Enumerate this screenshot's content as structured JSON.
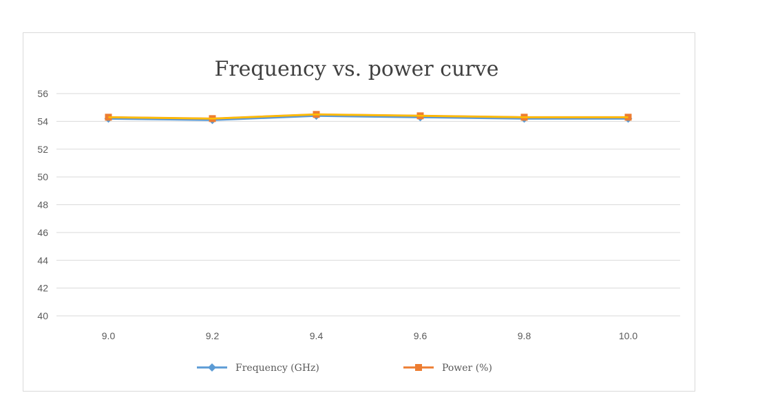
{
  "chart_data": {
    "type": "line",
    "title": "Frequency vs. power curve",
    "xlabel": "",
    "ylabel": "",
    "categories": [
      "9.0",
      "9.2",
      "9.4",
      "9.6",
      "9.8",
      "10.0"
    ],
    "ylim": [
      40,
      56
    ],
    "yticks": [
      40,
      42,
      44,
      46,
      48,
      50,
      52,
      54,
      56
    ],
    "grid": true,
    "legend_position": "bottom",
    "series": [
      {
        "name": "Frequency (GHz)",
        "values": [
          54.2,
          54.1,
          54.4,
          54.3,
          54.2,
          54.2
        ],
        "color": "#5b9bd5",
        "marker": "diamond"
      },
      {
        "name": "Power (%)",
        "values": [
          54.3,
          54.2,
          54.5,
          54.4,
          54.3,
          54.3
        ],
        "color": "#ed7d31",
        "marker": "square"
      }
    ],
    "overlay_line_color": "#ffc000"
  }
}
